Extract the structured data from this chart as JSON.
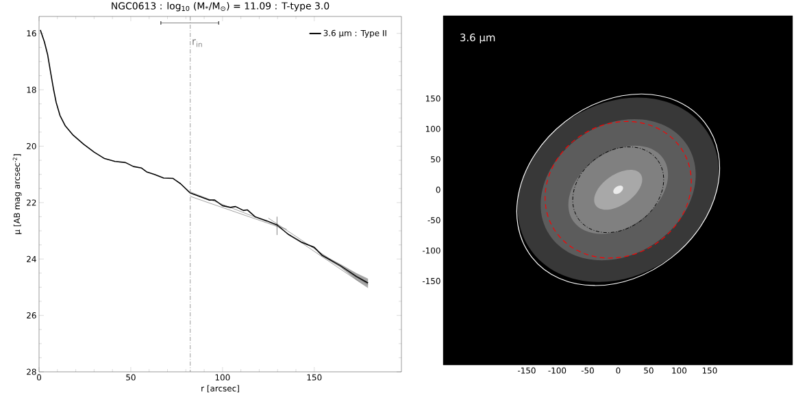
{
  "chart_data": [
    {
      "type": "line",
      "title": "NGC0613 : log$_{10}$ (M$_{*}$/M$_{⊙}$) = 11.09 : T-type 3.0",
      "xlabel": "r [arcsec]",
      "ylabel": "µ [AB mag arcsec$^{-2}$]",
      "xlim": [
        0,
        197.5
      ],
      "ylim": [
        28,
        15.4
      ],
      "xticks": [
        0,
        50,
        100,
        150
      ],
      "yticks": [
        16,
        18,
        20,
        22,
        24,
        26,
        28
      ],
      "legend": "top right",
      "series": [
        {
          "name": "3.6 µm : Type II",
          "color": "#000000",
          "x": [
            0.7,
            2.9,
            4.7,
            6.4,
            7.9,
            9.3,
            11.4,
            14.3,
            18.6,
            24.3,
            30,
            35.7,
            41.4,
            47.1,
            51.4,
            55.7,
            58.6,
            62.9,
            67.9,
            72.9,
            77.1,
            82.4,
            87.1,
            92.9,
            95.7,
            100,
            104.3,
            107.1,
            111.4,
            113.6,
            117.9,
            124.3,
            129.7,
            135.7,
            142.9,
            150,
            154.3,
            164.3,
            172.9,
            179.3
          ],
          "values": [
            15.88,
            16.3,
            16.76,
            17.42,
            17.98,
            18.44,
            18.91,
            19.28,
            19.61,
            19.93,
            20.21,
            20.44,
            20.54,
            20.58,
            20.72,
            20.77,
            20.91,
            21.0,
            21.13,
            21.14,
            21.33,
            21.66,
            21.77,
            21.91,
            21.91,
            22.11,
            22.17,
            22.14,
            22.28,
            22.26,
            22.51,
            22.65,
            22.79,
            23.12,
            23.4,
            23.59,
            23.87,
            24.24,
            24.62,
            24.85
          ],
          "lower": [
            15.88,
            16.3,
            16.76,
            17.42,
            17.98,
            18.44,
            18.91,
            19.28,
            19.61,
            19.93,
            20.21,
            20.44,
            20.54,
            20.58,
            20.72,
            20.77,
            20.91,
            21.0,
            21.13,
            21.14,
            21.33,
            21.66,
            21.77,
            21.91,
            21.91,
            22.11,
            22.17,
            22.14,
            22.28,
            22.26,
            22.51,
            22.65,
            22.79,
            23.12,
            23.38,
            23.56,
            23.83,
            24.18,
            24.5,
            24.7
          ],
          "upper": [
            15.88,
            16.3,
            16.76,
            17.42,
            17.98,
            18.44,
            18.91,
            19.28,
            19.61,
            19.93,
            20.21,
            20.44,
            20.54,
            20.58,
            20.72,
            20.77,
            20.91,
            21.0,
            21.13,
            21.14,
            21.33,
            21.66,
            21.77,
            21.91,
            21.91,
            22.11,
            22.17,
            22.14,
            22.28,
            22.26,
            22.51,
            22.65,
            22.79,
            23.12,
            23.42,
            23.62,
            23.91,
            24.3,
            24.74,
            25.0
          ]
        },
        {
          "color": "#404040",
          "x": [
            82.4,
            135
          ],
          "values": [
            21.62,
            22.95
          ]
        },
        {
          "color": "#404040",
          "x": [
            82.4,
            130,
            179.3
          ],
          "values": [
            21.78,
            22.85,
            25.02
          ]
        },
        {
          "color": "#404040",
          "x": [
            125,
            179.3
          ],
          "values": [
            22.55,
            24.9
          ]
        },
        {
          "color": "#000000",
          "x": [
            66.4,
            97.9
          ],
          "values": [
            15.63,
            15.63
          ],
          "errors": [
            0.06,
            0.06
          ]
        },
        {
          "color": "#000000",
          "x": [
            129.7,
            129.7
          ],
          "values": [
            22.5,
            23.15
          ]
        }
      ],
      "ref_lines": [
        {
          "axis": "x",
          "value": 82.4,
          "label": "r$_{in}$",
          "color": "#808080",
          "line_style": "dashdot"
        }
      ]
    },
    {
      "type": "line",
      "xlim": [
        -287,
        286
      ],
      "ylim": [
        -288,
        286
      ],
      "xticks": [
        -150,
        -100,
        -50,
        0,
        50,
        100,
        150
      ],
      "yticks": [
        -150,
        -100,
        -50,
        0,
        50,
        100,
        150
      ],
      "annotations": [
        "3.6 µm"
      ]
    }
  ]
}
